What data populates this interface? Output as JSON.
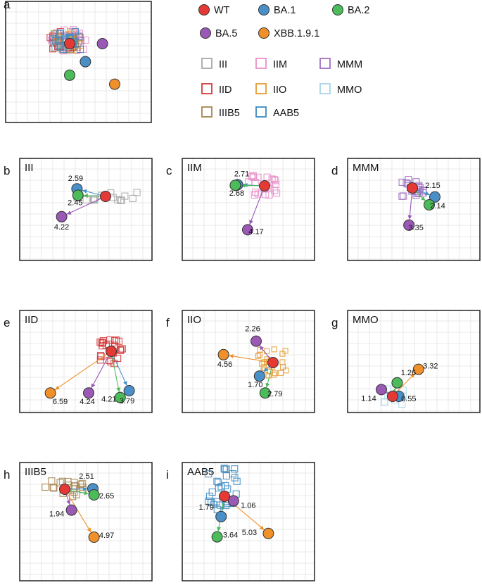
{
  "legend": {
    "viruses": [
      {
        "name": "WT",
        "color": "#e53935"
      },
      {
        "name": "BA.1",
        "color": "#4a90c8"
      },
      {
        "name": "BA.2",
        "color": "#4cbb5a"
      },
      {
        "name": "BA.5",
        "color": "#9b59b6"
      },
      {
        "name": "XBB.1.9.1",
        "color": "#f0902a"
      }
    ],
    "sera": [
      {
        "name": "III",
        "color": "#a8a8a8"
      },
      {
        "name": "IIM",
        "color": "#e88fc8"
      },
      {
        "name": "MMM",
        "color": "#a070c0"
      },
      {
        "name": "IID",
        "color": "#d63a3a"
      },
      {
        "name": "IIO",
        "color": "#e59a30"
      },
      {
        "name": "MMO",
        "color": "#a9d4e8"
      },
      {
        "name": "IIIB5",
        "color": "#a58450"
      },
      {
        "name": "AAB5",
        "color": "#3d8ac0"
      }
    ]
  },
  "chart_data": [
    {
      "panel": "a",
      "type": "scatter",
      "title": "",
      "points": [
        {
          "virus": "WT",
          "x": 0,
          "y": 0
        },
        {
          "virus": "BA.1",
          "x": 1.4,
          "y": -1.6
        },
        {
          "virus": "BA.2",
          "x": 0,
          "y": -2.8
        },
        {
          "virus": "BA.5",
          "x": 2.6,
          "y": 0
        },
        {
          "virus": "XBB.1.9.1",
          "x": 4.0,
          "y": -3.6
        }
      ]
    },
    {
      "panel": "b",
      "type": "scatter",
      "title": "III",
      "points": [
        {
          "virus": "WT",
          "x": 0,
          "y": 0
        },
        {
          "virus": "BA.1",
          "x": -2.6,
          "y": 0.3,
          "label": "2.59"
        },
        {
          "virus": "BA.2",
          "x": -2.45,
          "y": 0.1,
          "label": "2.45"
        },
        {
          "virus": "BA.5",
          "x": -3.9,
          "y": -1.8,
          "label": "4.22"
        }
      ]
    },
    {
      "panel": "c",
      "type": "scatter",
      "title": "IIM",
      "points": [
        {
          "virus": "WT",
          "x": 0,
          "y": 0
        },
        {
          "virus": "BA.1",
          "x": -2.65,
          "y": 0.1,
          "label": "2.71"
        },
        {
          "virus": "BA.2",
          "x": -2.6,
          "y": 0.05,
          "label": "2.68"
        },
        {
          "virus": "BA.5",
          "x": -1.5,
          "y": -3.9,
          "label": "4.17"
        }
      ]
    },
    {
      "panel": "d",
      "type": "scatter",
      "title": "MMM",
      "points": [
        {
          "virus": "WT",
          "x": 0,
          "y": 0
        },
        {
          "virus": "BA.1",
          "x": 2.0,
          "y": -0.8,
          "label": "2.15"
        },
        {
          "virus": "BA.2",
          "x": 1.5,
          "y": -1.5,
          "label": "2.14"
        },
        {
          "virus": "BA.5",
          "x": -0.3,
          "y": -3.3,
          "label": "3.35"
        }
      ]
    },
    {
      "panel": "e",
      "type": "scatter",
      "title": "IID",
      "points": [
        {
          "virus": "WT",
          "x": 0,
          "y": 0
        },
        {
          "virus": "BA.1",
          "x": 1.6,
          "y": -3.5,
          "label": "3.79"
        },
        {
          "virus": "BA.2",
          "x": 0.8,
          "y": -4.1,
          "label": "4.21"
        },
        {
          "virus": "BA.5",
          "x": -2.0,
          "y": -3.7,
          "label": "4.24"
        },
        {
          "virus": "XBB.1.9.1",
          "x": -5.4,
          "y": -3.7,
          "label": "6.59"
        }
      ]
    },
    {
      "panel": "f",
      "type": "scatter",
      "title": "IIO",
      "points": [
        {
          "virus": "WT",
          "x": 0,
          "y": 0
        },
        {
          "virus": "BA.1",
          "x": -1.2,
          "y": -1.2,
          "label": "1.70"
        },
        {
          "virus": "BA.2",
          "x": -0.7,
          "y": -2.7,
          "label": "2.79"
        },
        {
          "virus": "BA.5",
          "x": -1.5,
          "y": 1.9,
          "label": "2.26"
        },
        {
          "virus": "XBB.1.9.1",
          "x": -4.4,
          "y": 0.7,
          "label": "4.56"
        }
      ]
    },
    {
      "panel": "g",
      "type": "scatter",
      "title": "MMO",
      "points": [
        {
          "virus": "WT",
          "x": 0,
          "y": 0
        },
        {
          "virus": "BA.1",
          "x": 0.55,
          "y": 0,
          "label": "0.55"
        },
        {
          "virus": "BA.2",
          "x": 0.4,
          "y": 1.2,
          "label": "1.26"
        },
        {
          "virus": "BA.5",
          "x": -1.0,
          "y": 0.6,
          "label": "1.14"
        },
        {
          "virus": "XBB.1.9.1",
          "x": 2.3,
          "y": 2.4,
          "label": "3.32"
        }
      ]
    },
    {
      "panel": "h",
      "type": "scatter",
      "title": "IIIB5",
      "points": [
        {
          "virus": "WT",
          "x": 0,
          "y": 0
        },
        {
          "virus": "BA.1",
          "x": 2.5,
          "y": 0.05,
          "label": "2.51"
        },
        {
          "virus": "BA.2",
          "x": 2.6,
          "y": -0.5,
          "label": "2.65"
        },
        {
          "virus": "BA.5",
          "x": 0.6,
          "y": -1.85,
          "label": "1.94"
        },
        {
          "virus": "XBB.1.9.1",
          "x": 2.6,
          "y": -4.25,
          "label": "4.97"
        }
      ]
    },
    {
      "panel": "i",
      "type": "scatter",
      "title": "AAB5",
      "points": [
        {
          "virus": "WT",
          "x": 0,
          "y": 0
        },
        {
          "virus": "BA.1",
          "x": -0.3,
          "y": -1.8,
          "label": "1.79"
        },
        {
          "virus": "BA.2",
          "x": -0.65,
          "y": -3.6,
          "label": "3.64"
        },
        {
          "virus": "BA.5",
          "x": 0.8,
          "y": -0.4,
          "label": "1.06"
        },
        {
          "virus": "XBB.1.9.1",
          "x": 3.9,
          "y": -3.3,
          "label": "5.03"
        }
      ]
    }
  ]
}
